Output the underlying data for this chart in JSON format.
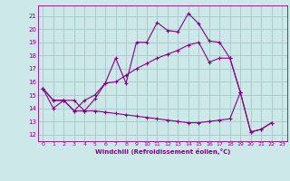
{
  "xlabel": "Windchill (Refroidissement éolien,°C)",
  "background_color": "#cce8e8",
  "grid_color": "#aacccc",
  "line_color": "#880088",
  "xlim": [
    -0.5,
    23.5
  ],
  "ylim": [
    11.5,
    21.8
  ],
  "yticks": [
    12,
    13,
    14,
    15,
    16,
    17,
    18,
    19,
    20,
    21
  ],
  "xticks": [
    0,
    1,
    2,
    3,
    4,
    5,
    6,
    7,
    8,
    9,
    10,
    11,
    12,
    13,
    14,
    15,
    16,
    17,
    18,
    19,
    20,
    21,
    22,
    23
  ],
  "series": [
    {
      "x": [
        0,
        1,
        2,
        3,
        4,
        5,
        6,
        7,
        8,
        9,
        10,
        11,
        12,
        13,
        14,
        15,
        16,
        17,
        18,
        19,
        20,
        21,
        22
      ],
      "y": [
        15.5,
        14.0,
        14.6,
        14.6,
        13.8,
        14.7,
        15.9,
        17.8,
        15.9,
        19.0,
        19.0,
        20.5,
        19.9,
        19.8,
        21.2,
        20.4,
        19.1,
        19.0,
        17.8,
        15.2,
        12.2,
        12.4,
        12.9
      ]
    },
    {
      "x": [
        0,
        1,
        2,
        3,
        4,
        5,
        6,
        7,
        8,
        9,
        10,
        11,
        12,
        13,
        14,
        15,
        16,
        17,
        18,
        19
      ],
      "y": [
        15.5,
        14.6,
        14.6,
        13.8,
        14.6,
        15.0,
        15.9,
        16.0,
        16.5,
        17.0,
        17.4,
        17.8,
        18.1,
        18.4,
        18.8,
        19.0,
        17.5,
        17.8,
        17.8,
        15.2
      ]
    },
    {
      "x": [
        0,
        1,
        2,
        3,
        4,
        5,
        6,
        7,
        8,
        9,
        10,
        11,
        12,
        13,
        14,
        15,
        16,
        17,
        18,
        19,
        20,
        21,
        22
      ],
      "y": [
        15.5,
        14.6,
        14.6,
        13.8,
        13.8,
        13.8,
        13.7,
        13.6,
        13.5,
        13.4,
        13.3,
        13.2,
        13.1,
        13.0,
        12.9,
        12.9,
        13.0,
        13.1,
        13.2,
        15.2,
        12.2,
        12.4,
        12.9
      ]
    }
  ]
}
